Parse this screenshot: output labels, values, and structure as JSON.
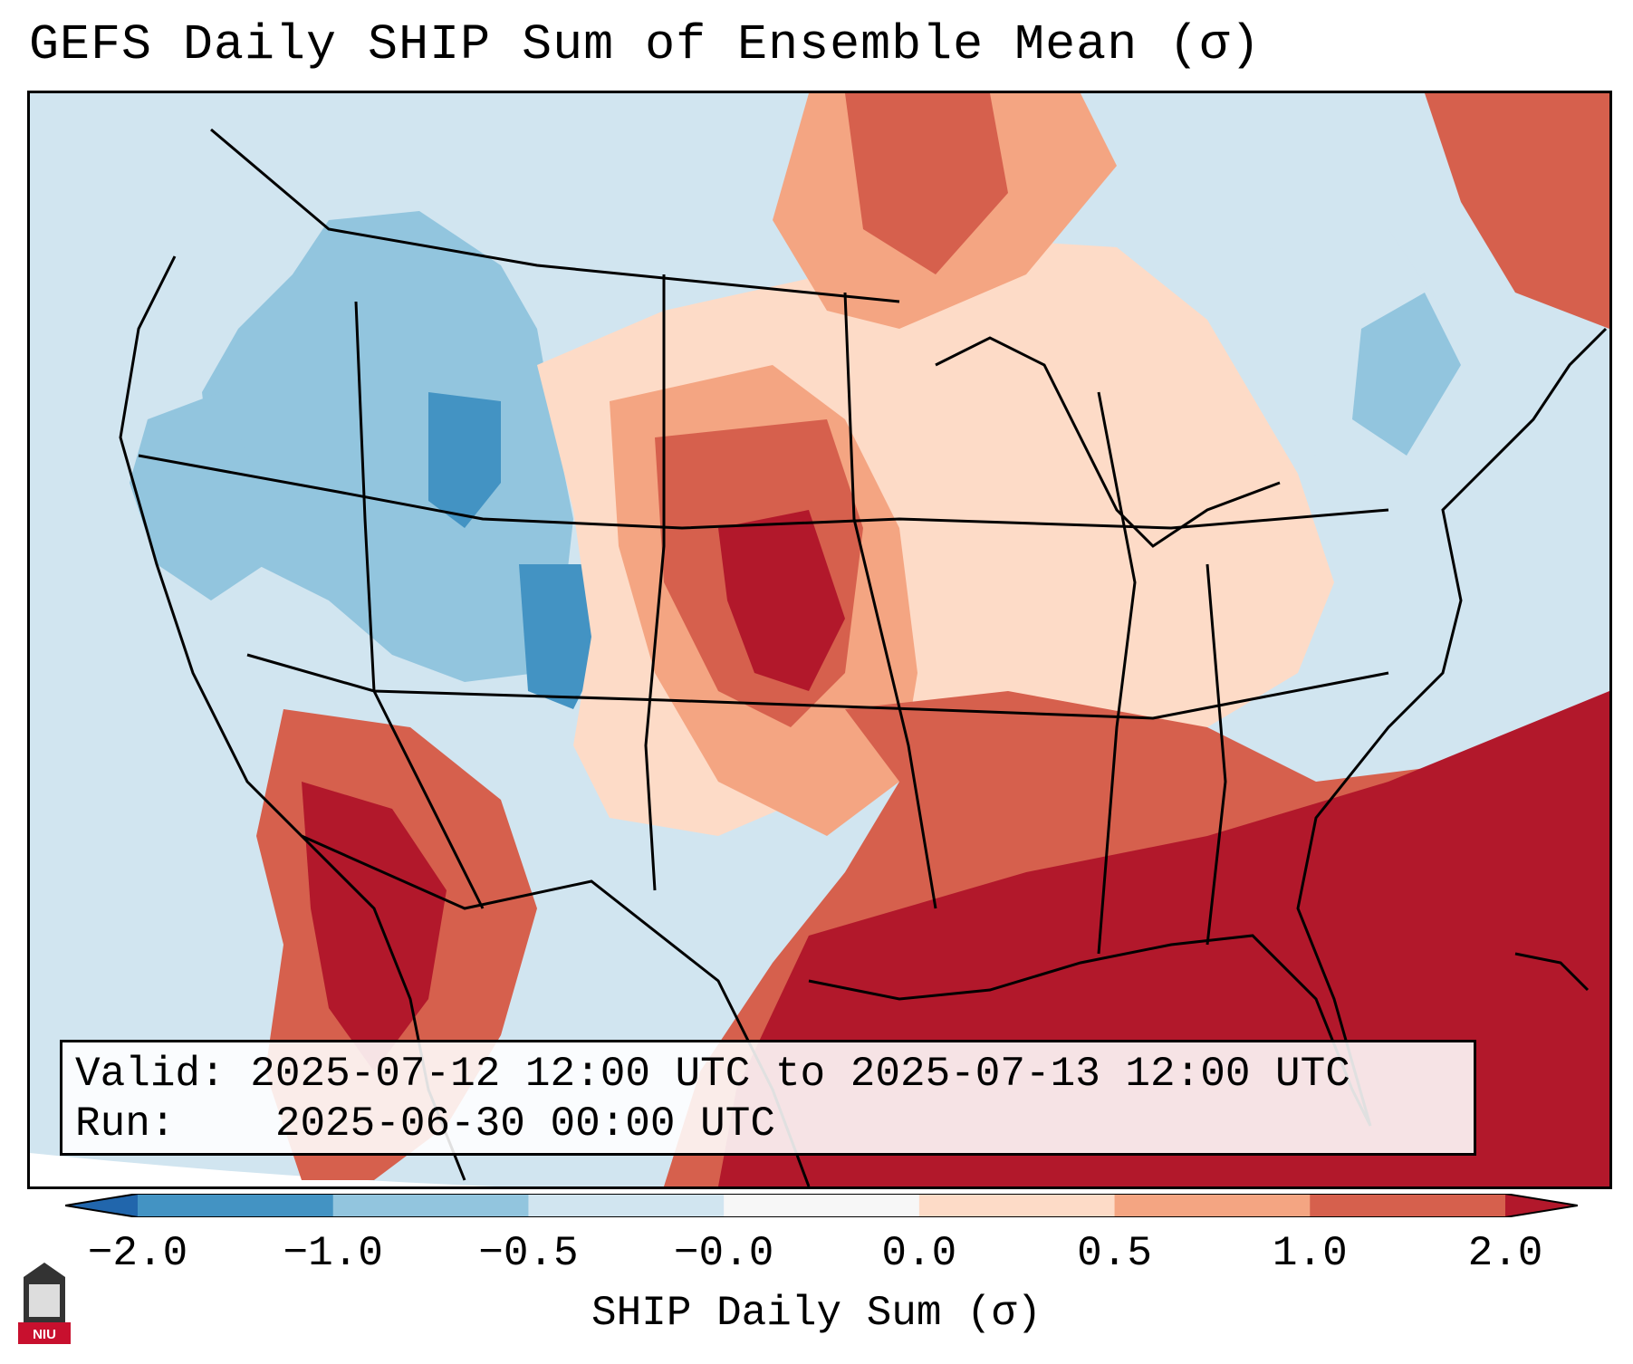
{
  "title": "GEFS Daily SHIP Sum of Ensemble Mean (σ)",
  "info": {
    "valid_label": "Valid:",
    "valid_value": "2025-07-12 12:00 UTC to 2025-07-13 12:00 UTC",
    "run_label": "Run:",
    "run_value": "2025-06-30 00:00 UTC"
  },
  "colorbar": {
    "label": "SHIP Daily Sum (σ)",
    "ticks": [
      "−2.0",
      "−1.0",
      "−0.5",
      "−0.0",
      "0.0",
      "0.5",
      "1.0",
      "2.0"
    ],
    "bins": [
      {
        "range": "< -2.0",
        "color": "#2166ac"
      },
      {
        "range": "-2.0 to -1.0",
        "color": "#4393c3"
      },
      {
        "range": "-1.0 to -0.5",
        "color": "#92c5de"
      },
      {
        "range": "-0.5 to -0.0",
        "color": "#d1e5f0"
      },
      {
        "range": "-0.0 to 0.0",
        "color": "#f7f7f7"
      },
      {
        "range": "0.0 to 0.5",
        "color": "#fddbc7"
      },
      {
        "range": "0.5 to 1.0",
        "color": "#f4a582"
      },
      {
        "range": "1.0 to 2.0",
        "color": "#d6604d"
      },
      {
        "range": "> 2.0",
        "color": "#b2182b"
      }
    ]
  },
  "logo": {
    "text": "NIU",
    "color": "#c8102e"
  },
  "icons": [
    "niu-logo-icon"
  ]
}
